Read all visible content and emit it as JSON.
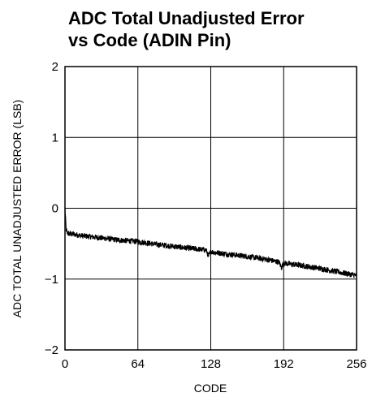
{
  "chart_data": {
    "type": "line",
    "title": [
      "ADC Total Unadjusted Error",
      "vs Code (ADIN Pin)"
    ],
    "xlabel": "CODE",
    "ylabel": "ADC TOTAL UNADJUSTED ERROR (LSB)",
    "xlim": [
      0,
      256
    ],
    "ylim": [
      -2,
      2
    ],
    "xticks": [
      0,
      64,
      128,
      192,
      256
    ],
    "xtick_labels": [
      "0",
      "64",
      "128",
      "192",
      "256"
    ],
    "yticks": [
      2,
      1,
      0,
      -1,
      -2
    ],
    "ytick_labels": [
      "2",
      "1",
      "0",
      "−1",
      "−2"
    ],
    "grid": true,
    "series": [
      {
        "x": [
          0,
          1,
          2,
          4,
          8,
          16,
          32,
          48,
          64,
          80,
          96,
          112,
          124,
          126,
          128,
          130,
          144,
          160,
          176,
          188,
          190,
          192,
          194,
          208,
          224,
          240,
          256
        ],
        "y": [
          0.0,
          -0.3,
          -0.35,
          -0.36,
          -0.37,
          -0.39,
          -0.42,
          -0.45,
          -0.47,
          -0.51,
          -0.54,
          -0.57,
          -0.59,
          -0.68,
          -0.61,
          -0.62,
          -0.65,
          -0.68,
          -0.72,
          -0.76,
          -0.84,
          -0.77,
          -0.78,
          -0.81,
          -0.85,
          -0.9,
          -0.95
        ],
        "noise_band": 0.04
      }
    ]
  }
}
